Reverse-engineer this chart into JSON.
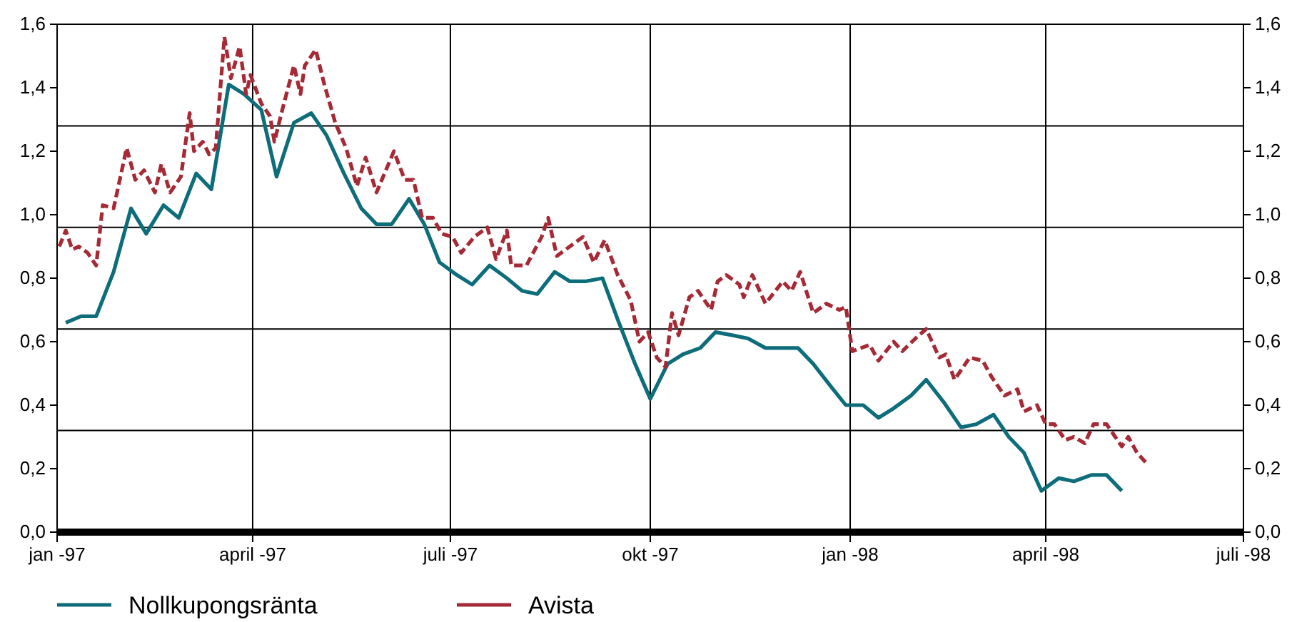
{
  "chart_data": {
    "type": "line",
    "xlim": [
      "1997-01-01",
      "1998-07-01"
    ],
    "xticks": [
      {
        "value": "1997-01-01",
        "label": "jan -97"
      },
      {
        "value": "1997-04-01",
        "label": "april -97"
      },
      {
        "value": "1997-07-01",
        "label": "juli -97"
      },
      {
        "value": "1997-10-01",
        "label": "okt -97"
      },
      {
        "value": "1998-01-01",
        "label": "jan -98"
      },
      {
        "value": "1998-04-01",
        "label": "april -98"
      },
      {
        "value": "1998-07-01",
        "label": "juli -98"
      }
    ],
    "ylim": [
      0,
      1.6
    ],
    "yticks": [
      {
        "value": 0,
        "label": "0,0"
      },
      {
        "value": 0.2,
        "label": "0,2"
      },
      {
        "value": 0.4,
        "label": "0,4"
      },
      {
        "value": 0.6,
        "label": "0,6"
      },
      {
        "value": 0.8,
        "label": "0,8"
      },
      {
        "value": 1.0,
        "label": "1,0"
      },
      {
        "value": 1.2,
        "label": "1,2"
      },
      {
        "value": 1.4,
        "label": "1,4"
      },
      {
        "value": 1.6,
        "label": "1,6"
      }
    ],
    "y2lim": [
      0,
      1.6
    ],
    "y2ticks": [
      {
        "value": 0,
        "label": "0,0"
      },
      {
        "value": 0.2,
        "label": "0,2"
      },
      {
        "value": 0.4,
        "label": "0,4"
      },
      {
        "value": 0.6,
        "label": "0,6"
      },
      {
        "value": 0.8,
        "label": "0,8"
      },
      {
        "value": 1.0,
        "label": "1,0"
      },
      {
        "value": 1.2,
        "label": "1,2"
      },
      {
        "value": 1.4,
        "label": "1,4"
      },
      {
        "value": 1.6,
        "label": "1,6"
      }
    ],
    "grid": "x",
    "legend": "bottom",
    "marker": "none",
    "ref_lines": [
      {
        "axis": "y",
        "value": 0.32,
        "color": "#000000"
      },
      {
        "axis": "y",
        "value": 0.64,
        "color": "#000000"
      },
      {
        "axis": "y",
        "value": 0.96,
        "color": "#000000"
      },
      {
        "axis": "y",
        "value": 1.28,
        "color": "#000000"
      }
    ],
    "series": [
      {
        "name": "Nollkupongsränta",
        "color": "#0e6d7a",
        "line_style": "solid",
        "x": [
          "1997-01-05",
          "1997-01-12",
          "1997-01-19",
          "1997-01-27",
          "1997-02-04",
          "1997-02-11",
          "1997-02-19",
          "1997-02-26",
          "1997-03-06",
          "1997-03-13",
          "1997-03-21",
          "1997-03-28",
          "1997-04-05",
          "1997-04-12",
          "1997-04-20",
          "1997-04-28",
          "1997-05-05",
          "1997-05-13",
          "1997-05-21",
          "1997-05-28",
          "1997-06-04",
          "1997-06-12",
          "1997-06-19",
          "1997-06-26",
          "1997-07-04",
          "1997-07-11",
          "1997-07-19",
          "1997-07-27",
          "1997-08-03",
          "1997-08-10",
          "1997-08-18",
          "1997-08-25",
          "1997-09-01",
          "1997-09-09",
          "1997-09-16",
          "1997-09-24",
          "1997-10-01",
          "1997-10-09",
          "1997-10-16",
          "1997-10-24",
          "1997-10-31",
          "1997-11-08",
          "1997-11-15",
          "1997-11-23",
          "1997-11-30",
          "1997-12-08",
          "1997-12-15",
          "1997-12-23",
          "1997-12-30",
          "1998-01-07",
          "1998-01-14",
          "1998-01-21",
          "1998-01-29",
          "1998-02-05",
          "1998-02-13",
          "1998-02-21",
          "1998-02-28",
          "1998-03-08",
          "1998-03-15",
          "1998-03-22",
          "1998-03-30",
          "1998-04-07",
          "1998-04-14",
          "1998-04-22",
          "1998-04-29",
          "1998-05-06"
        ],
        "values": [
          0.66,
          0.68,
          0.68,
          0.82,
          1.02,
          0.94,
          1.03,
          0.99,
          1.13,
          1.08,
          1.41,
          1.38,
          1.33,
          1.12,
          1.29,
          1.32,
          1.25,
          1.13,
          1.02,
          0.97,
          0.97,
          1.05,
          0.97,
          0.85,
          0.81,
          0.78,
          0.84,
          0.8,
          0.76,
          0.75,
          0.82,
          0.79,
          0.79,
          0.8,
          0.67,
          0.53,
          0.42,
          0.53,
          0.56,
          0.58,
          0.63,
          0.62,
          0.61,
          0.58,
          0.58,
          0.58,
          0.53,
          0.46,
          0.4,
          0.4,
          0.36,
          0.39,
          0.43,
          0.48,
          0.41,
          0.33,
          0.34,
          0.37,
          0.3,
          0.25,
          0.13,
          0.17,
          0.16,
          0.18,
          0.18,
          0.13
        ]
      },
      {
        "name": "Avista",
        "color": "#a52a36",
        "line_style": "dashed",
        "x": [
          "1997-01-02",
          "1997-01-05",
          "1997-01-08",
          "1997-01-11",
          "1997-01-15",
          "1997-01-19",
          "1997-01-22",
          "1997-01-27",
          "1997-02-02",
          "1997-02-06",
          "1997-02-10",
          "1997-02-15",
          "1997-02-18",
          "1997-02-22",
          "1997-02-27",
          "1997-03-03",
          "1997-03-05",
          "1997-03-09",
          "1997-03-12",
          "1997-03-15",
          "1997-03-19",
          "1997-03-22",
          "1997-03-26",
          "1997-03-29",
          "1997-03-31",
          "1997-04-05",
          "1997-04-09",
          "1997-04-11",
          "1997-04-15",
          "1997-04-20",
          "1997-04-23",
          "1997-04-25",
          "1997-04-30",
          "1997-05-04",
          "1997-05-09",
          "1997-05-14",
          "1997-05-19",
          "1997-05-23",
          "1997-05-28",
          "1997-06-05",
          "1997-06-10",
          "1997-06-14",
          "1997-06-18",
          "1997-06-23",
          "1997-06-27",
          "1997-07-02",
          "1997-07-06",
          "1997-07-12",
          "1997-07-18",
          "1997-07-22",
          "1997-07-27",
          "1997-07-29",
          "1997-08-05",
          "1997-08-12",
          "1997-08-15",
          "1997-08-19",
          "1997-08-31",
          "1997-09-05",
          "1997-09-10",
          "1997-09-16",
          "1997-09-22",
          "1997-09-26",
          "1997-09-30",
          "1997-10-04",
          "1997-10-08",
          "1997-10-11",
          "1997-10-14",
          "1997-10-19",
          "1997-10-23",
          "1997-10-29",
          "1997-11-01",
          "1997-11-05",
          "1997-11-11",
          "1997-11-13",
          "1997-11-17",
          "1997-11-23",
          "1997-12-01",
          "1997-12-05",
          "1997-12-09",
          "1997-12-15",
          "1997-12-21",
          "1997-12-27",
          "1997-12-30",
          "1998-01-02",
          "1998-01-06",
          "1998-01-10",
          "1998-01-14",
          "1998-01-21",
          "1998-01-25",
          "1998-01-31",
          "1998-02-05",
          "1998-02-11",
          "1998-02-14",
          "1998-02-18",
          "1998-02-25",
          "1998-03-03",
          "1998-03-07",
          "1998-03-13",
          "1998-03-19",
          "1998-03-22",
          "1998-03-28",
          "1998-04-01",
          "1998-04-05",
          "1998-04-10",
          "1998-04-14",
          "1998-04-19",
          "1998-04-23",
          "1998-04-29",
          "1998-05-02",
          "1998-05-06",
          "1998-05-09",
          "1998-05-13",
          "1998-05-17"
        ],
        "values": [
          0.9,
          0.95,
          0.89,
          0.9,
          0.88,
          0.84,
          1.03,
          1.02,
          1.21,
          1.11,
          1.14,
          1.07,
          1.16,
          1.07,
          1.12,
          1.32,
          1.2,
          1.23,
          1.19,
          1.21,
          1.56,
          1.43,
          1.53,
          1.38,
          1.44,
          1.35,
          1.31,
          1.23,
          1.34,
          1.47,
          1.38,
          1.47,
          1.52,
          1.41,
          1.29,
          1.21,
          1.09,
          1.18,
          1.07,
          1.2,
          1.11,
          1.11,
          0.99,
          0.99,
          0.94,
          0.93,
          0.88,
          0.93,
          0.96,
          0.86,
          0.95,
          0.84,
          0.84,
          0.93,
          0.99,
          0.87,
          0.93,
          0.85,
          0.92,
          0.81,
          0.73,
          0.6,
          0.63,
          0.55,
          0.52,
          0.69,
          0.62,
          0.74,
          0.76,
          0.7,
          0.79,
          0.81,
          0.78,
          0.74,
          0.81,
          0.72,
          0.79,
          0.76,
          0.82,
          0.69,
          0.72,
          0.7,
          0.71,
          0.57,
          0.58,
          0.59,
          0.54,
          0.6,
          0.57,
          0.61,
          0.64,
          0.55,
          0.56,
          0.48,
          0.55,
          0.54,
          0.49,
          0.43,
          0.45,
          0.38,
          0.4,
          0.34,
          0.34,
          0.29,
          0.3,
          0.28,
          0.34,
          0.34,
          0.31,
          0.27,
          0.3,
          0.25,
          0.22
        ]
      }
    ]
  }
}
